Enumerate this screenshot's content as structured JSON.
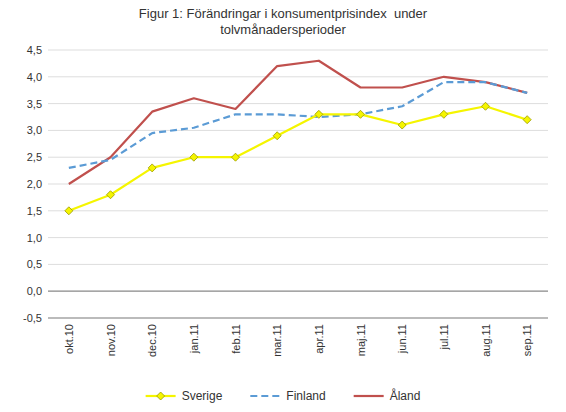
{
  "chart_data": {
    "type": "line",
    "title": "Figur 1: Förändringar i konsumentprisindex  under\ntolvmånadersperioder",
    "categories": [
      "okt.10",
      "nov.10",
      "dec.10",
      "jan.11",
      "feb.11",
      "mar.11",
      "apr.11",
      "maj.11",
      "jun.11",
      "jul.11",
      "aug.11",
      "sep.11"
    ],
    "series": [
      {
        "name": "Sverige",
        "color": "#f5f500",
        "marker": "diamond",
        "line_style": "solid",
        "values": [
          1.5,
          1.8,
          2.3,
          2.5,
          2.5,
          2.9,
          3.3,
          3.3,
          3.1,
          3.3,
          3.45,
          3.2
        ]
      },
      {
        "name": "Finland",
        "color": "#5b9bd5",
        "line_style": "dashed",
        "values": [
          2.3,
          2.45,
          2.95,
          3.05,
          3.3,
          3.3,
          3.25,
          3.3,
          3.45,
          3.9,
          3.9,
          3.7
        ]
      },
      {
        "name": "Åland",
        "color": "#c0504d",
        "line_style": "solid",
        "values": [
          2.0,
          2.5,
          3.35,
          3.6,
          3.4,
          4.2,
          4.3,
          3.8,
          3.8,
          4.0,
          3.9,
          3.7
        ]
      }
    ],
    "ylim": [
      -0.5,
      4.5
    ],
    "yticks": [
      {
        "value": -0.5,
        "label": "-0,5"
      },
      {
        "value": 0.0,
        "label": "0,0"
      },
      {
        "value": 0.5,
        "label": "0,5"
      },
      {
        "value": 1.0,
        "label": "1,0"
      },
      {
        "value": 1.5,
        "label": "1,5"
      },
      {
        "value": 2.0,
        "label": "2,0"
      },
      {
        "value": 2.5,
        "label": "2,5"
      },
      {
        "value": 3.0,
        "label": "3,0"
      },
      {
        "value": 3.5,
        "label": "3,5"
      },
      {
        "value": 4.0,
        "label": "4,0"
      },
      {
        "value": 4.5,
        "label": "4,5"
      }
    ],
    "grid": true,
    "legend": "bottom"
  }
}
